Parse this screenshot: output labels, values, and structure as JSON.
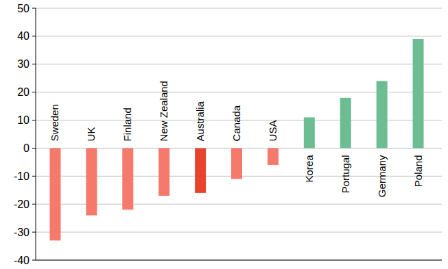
{
  "chart_data": {
    "type": "bar",
    "categories": [
      "Sweden",
      "UK",
      "Finland",
      "New Zealand",
      "Australia",
      "Canada",
      "USA",
      "Korea",
      "Portugal",
      "Germany",
      "Poland"
    ],
    "values": [
      -33,
      -24,
      -22,
      -17,
      -16,
      -11,
      -6,
      11,
      18,
      24,
      39
    ],
    "colors": [
      "#f67a6c",
      "#f67a6c",
      "#f67a6c",
      "#f67a6c",
      "#e8432f",
      "#f67a6c",
      "#f67a6c",
      "#6dbd93",
      "#6dbd93",
      "#6dbd93",
      "#6dbd93"
    ],
    "ylim": [
      -40,
      50
    ],
    "yticks": [
      -40,
      -30,
      -20,
      -10,
      0,
      10,
      20,
      30,
      40,
      50
    ],
    "grid": true
  }
}
